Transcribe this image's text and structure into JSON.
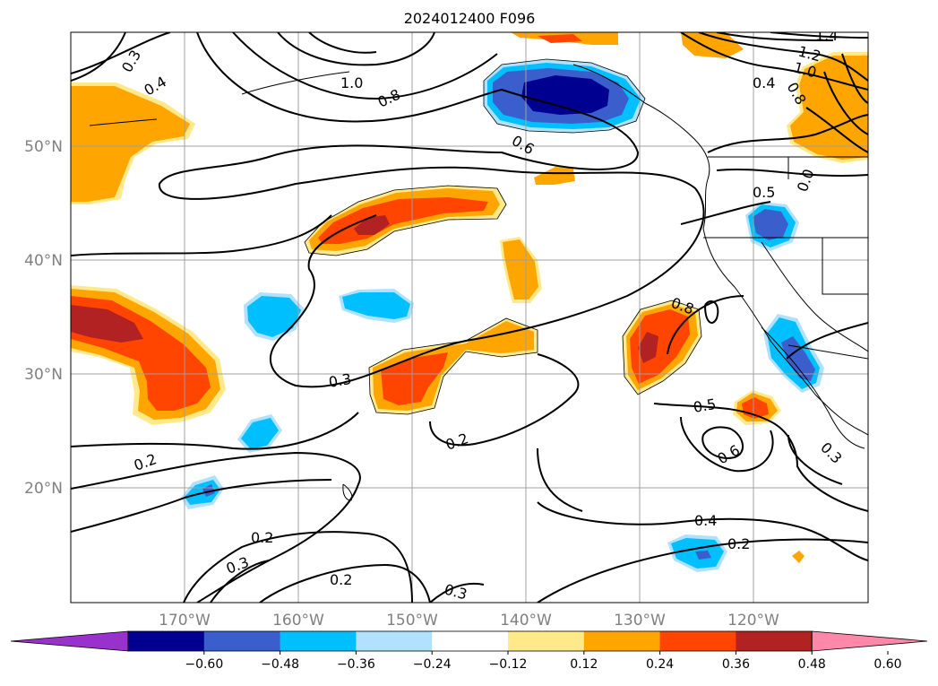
{
  "title": "2024012400 F096",
  "lat_labels": [
    "50°N",
    "40°N",
    "30°N",
    "20°N"
  ],
  "lon_labels": [
    "170°W",
    "160°W",
    "150°W",
    "140°W",
    "130°W",
    "120°W"
  ],
  "colorbar": {
    "ticks": [
      "−0.60",
      "−0.48",
      "−0.36",
      "−0.24",
      "−0.12",
      "0.12",
      "0.24",
      "0.36",
      "0.48",
      "0.60"
    ],
    "colors": [
      "#9932cc",
      "#000090",
      "#3a5fcd",
      "#00bfff",
      "#b0e2ff",
      "#ffffff",
      "#ffe98a",
      "#ffa500",
      "#ff4500",
      "#b22222",
      "#ff88aa"
    ]
  },
  "contour_labels": [
    {
      "text": "0.3"
    },
    {
      "text": "0.4"
    },
    {
      "text": "1.0"
    },
    {
      "text": "0.8"
    },
    {
      "text": "0.6"
    },
    {
      "text": "1.4"
    },
    {
      "text": "1.2"
    },
    {
      "text": "1.0"
    },
    {
      "text": "0.8"
    },
    {
      "text": "0.4"
    },
    {
      "text": "0.5"
    },
    {
      "text": "0.3"
    },
    {
      "text": "0.2"
    },
    {
      "text": "0.2"
    },
    {
      "text": "0.5"
    },
    {
      "text": "0.6"
    },
    {
      "text": "0.3"
    },
    {
      "text": "0.4"
    },
    {
      "text": "0.2"
    },
    {
      "text": "0.2"
    },
    {
      "text": "0.3"
    },
    {
      "text": "0.2"
    },
    {
      "text": "0.3"
    },
    {
      "text": "0.8"
    },
    {
      "text": "0.0"
    }
  ]
}
